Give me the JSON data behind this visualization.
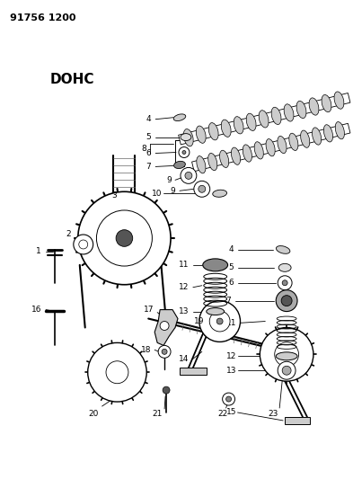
{
  "title_code": "91756 1200",
  "subtitle": "DOHC",
  "background_color": "#ffffff",
  "line_color": "#000000",
  "fig_width": 3.93,
  "fig_height": 5.33,
  "dpi": 100
}
